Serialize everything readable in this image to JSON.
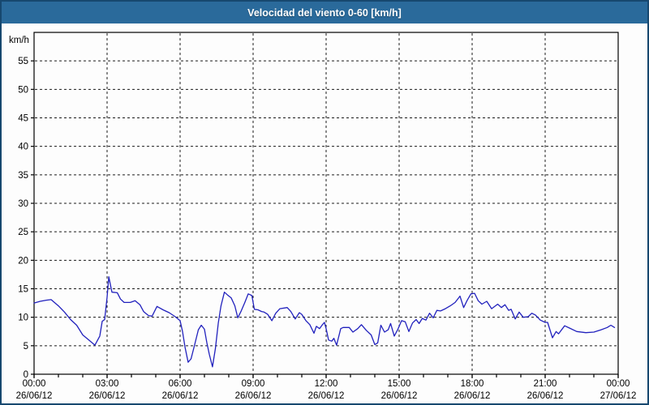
{
  "title_bar": {
    "title": "Velocidad del viento 0-60 [km/h]"
  },
  "colors": {
    "title_bar_bg": "#2a6a9b",
    "title_text": "#ffffff",
    "window_border": "#17486f",
    "background": "#fdfdfd",
    "plot_frame": "#000000",
    "grid": "#1a1a1a",
    "label_text": "#000000",
    "series_line": "#2121bd"
  },
  "chart_data": {
    "type": "line",
    "title": "Velocidad del viento 0-60 [km/h]",
    "ylabel": "km/h",
    "xlabel": "",
    "ylim": [
      0,
      60
    ],
    "yticks": [
      0,
      5,
      10,
      15,
      20,
      25,
      30,
      35,
      40,
      45,
      50,
      55
    ],
    "xlim": [
      0,
      24
    ],
    "xticks": [
      {
        "hour": 0,
        "time": "00:00",
        "date": "26/06/12"
      },
      {
        "hour": 3,
        "time": "03:00",
        "date": "26/06/12"
      },
      {
        "hour": 6,
        "time": "06:00",
        "date": "26/06/12"
      },
      {
        "hour": 9,
        "time": "09:00",
        "date": "26/06/12"
      },
      {
        "hour": 12,
        "time": "12:00",
        "date": "26/06/12"
      },
      {
        "hour": 15,
        "time": "15:00",
        "date": "26/06/12"
      },
      {
        "hour": 18,
        "time": "18:00",
        "date": "26/06/12"
      },
      {
        "hour": 21,
        "time": "21:00",
        "date": "26/06/12"
      },
      {
        "hour": 24,
        "time": "00:00",
        "date": "27/06/12"
      }
    ],
    "minor_xtick_every_hours": 1,
    "x_gridline_hours": [
      3,
      6,
      9,
      12,
      15,
      18,
      21
    ],
    "grid": "dashed",
    "legend_position": "none",
    "series": [
      {
        "name": "Velocidad del viento",
        "units": "km/h",
        "color": "#2121bd",
        "points": [
          [
            0.0,
            12.5
          ],
          [
            0.25,
            12.8
          ],
          [
            0.5,
            13.0
          ],
          [
            0.7,
            13.1
          ],
          [
            1.0,
            12.0
          ],
          [
            1.25,
            10.9
          ],
          [
            1.5,
            9.6
          ],
          [
            1.75,
            8.6
          ],
          [
            2.0,
            6.9
          ],
          [
            2.25,
            6.0
          ],
          [
            2.5,
            5.1
          ],
          [
            2.7,
            6.7
          ],
          [
            2.8,
            9.3
          ],
          [
            2.9,
            9.6
          ],
          [
            3.0,
            13.5
          ],
          [
            3.07,
            17.1
          ],
          [
            3.2,
            14.4
          ],
          [
            3.42,
            14.3
          ],
          [
            3.55,
            13.2
          ],
          [
            3.7,
            12.6
          ],
          [
            3.95,
            12.6
          ],
          [
            4.15,
            12.9
          ],
          [
            4.35,
            12.2
          ],
          [
            4.5,
            11.0
          ],
          [
            4.7,
            10.3
          ],
          [
            4.85,
            10.2
          ],
          [
            5.05,
            11.9
          ],
          [
            5.3,
            11.3
          ],
          [
            5.55,
            10.8
          ],
          [
            5.8,
            10.1
          ],
          [
            6.0,
            9.4
          ],
          [
            6.1,
            7.5
          ],
          [
            6.2,
            4.8
          ],
          [
            6.33,
            2.1
          ],
          [
            6.45,
            2.7
          ],
          [
            6.6,
            5.2
          ],
          [
            6.75,
            7.8
          ],
          [
            6.87,
            8.6
          ],
          [
            7.0,
            7.9
          ],
          [
            7.1,
            5.5
          ],
          [
            7.2,
            3.5
          ],
          [
            7.33,
            1.3
          ],
          [
            7.45,
            4.5
          ],
          [
            7.57,
            9.0
          ],
          [
            7.68,
            12.0
          ],
          [
            7.82,
            14.4
          ],
          [
            7.95,
            13.9
          ],
          [
            8.1,
            13.4
          ],
          [
            8.25,
            12.0
          ],
          [
            8.37,
            9.9
          ],
          [
            8.5,
            11.0
          ],
          [
            8.65,
            12.5
          ],
          [
            8.8,
            14.1
          ],
          [
            8.95,
            13.8
          ],
          [
            9.05,
            11.4
          ],
          [
            9.2,
            11.3
          ],
          [
            9.35,
            11.0
          ],
          [
            9.45,
            10.9
          ],
          [
            9.6,
            10.5
          ],
          [
            9.77,
            9.4
          ],
          [
            9.93,
            10.7
          ],
          [
            10.1,
            11.5
          ],
          [
            10.4,
            11.7
          ],
          [
            10.55,
            11.0
          ],
          [
            10.73,
            9.7
          ],
          [
            10.9,
            10.8
          ],
          [
            11.0,
            10.5
          ],
          [
            11.17,
            9.4
          ],
          [
            11.33,
            8.7
          ],
          [
            11.5,
            7.2
          ],
          [
            11.6,
            8.4
          ],
          [
            11.73,
            8.0
          ],
          [
            11.85,
            8.7
          ],
          [
            11.93,
            9.1
          ],
          [
            12.0,
            8.0
          ],
          [
            12.1,
            6.0
          ],
          [
            12.23,
            5.8
          ],
          [
            12.32,
            6.3
          ],
          [
            12.43,
            5.1
          ],
          [
            12.6,
            8.0
          ],
          [
            12.7,
            8.2
          ],
          [
            12.95,
            8.2
          ],
          [
            13.1,
            7.4
          ],
          [
            13.3,
            8.0
          ],
          [
            13.45,
            8.7
          ],
          [
            13.65,
            7.7
          ],
          [
            13.85,
            6.9
          ],
          [
            14.0,
            5.2
          ],
          [
            14.12,
            5.5
          ],
          [
            14.25,
            8.6
          ],
          [
            14.4,
            7.4
          ],
          [
            14.55,
            7.8
          ],
          [
            14.65,
            8.9
          ],
          [
            14.8,
            6.7
          ],
          [
            14.95,
            7.9
          ],
          [
            15.1,
            9.4
          ],
          [
            15.25,
            9.2
          ],
          [
            15.4,
            7.5
          ],
          [
            15.55,
            9.0
          ],
          [
            15.7,
            9.6
          ],
          [
            15.82,
            8.9
          ],
          [
            15.95,
            9.8
          ],
          [
            16.1,
            9.5
          ],
          [
            16.25,
            10.7
          ],
          [
            16.4,
            9.9
          ],
          [
            16.55,
            11.2
          ],
          [
            16.7,
            11.1
          ],
          [
            16.9,
            11.5
          ],
          [
            17.1,
            12.0
          ],
          [
            17.3,
            12.6
          ],
          [
            17.5,
            13.7
          ],
          [
            17.65,
            11.7
          ],
          [
            17.8,
            13.0
          ],
          [
            17.95,
            14.1
          ],
          [
            18.1,
            14.2
          ],
          [
            18.25,
            12.9
          ],
          [
            18.4,
            12.3
          ],
          [
            18.6,
            12.8
          ],
          [
            18.8,
            11.5
          ],
          [
            19.05,
            12.3
          ],
          [
            19.2,
            11.7
          ],
          [
            19.35,
            12.2
          ],
          [
            19.5,
            11.2
          ],
          [
            19.6,
            11.4
          ],
          [
            19.77,
            9.7
          ],
          [
            19.93,
            10.9
          ],
          [
            20.1,
            10.0
          ],
          [
            20.3,
            10.1
          ],
          [
            20.45,
            10.7
          ],
          [
            20.6,
            10.4
          ],
          [
            20.8,
            9.5
          ],
          [
            21.0,
            9.1
          ],
          [
            21.1,
            9.1
          ],
          [
            21.3,
            6.4
          ],
          [
            21.45,
            7.5
          ],
          [
            21.55,
            7.1
          ],
          [
            21.8,
            8.5
          ],
          [
            22.0,
            8.1
          ],
          [
            22.3,
            7.5
          ],
          [
            22.67,
            7.3
          ],
          [
            23.0,
            7.4
          ],
          [
            23.3,
            7.8
          ],
          [
            23.55,
            8.2
          ],
          [
            23.7,
            8.6
          ],
          [
            23.85,
            8.2
          ]
        ]
      }
    ]
  }
}
